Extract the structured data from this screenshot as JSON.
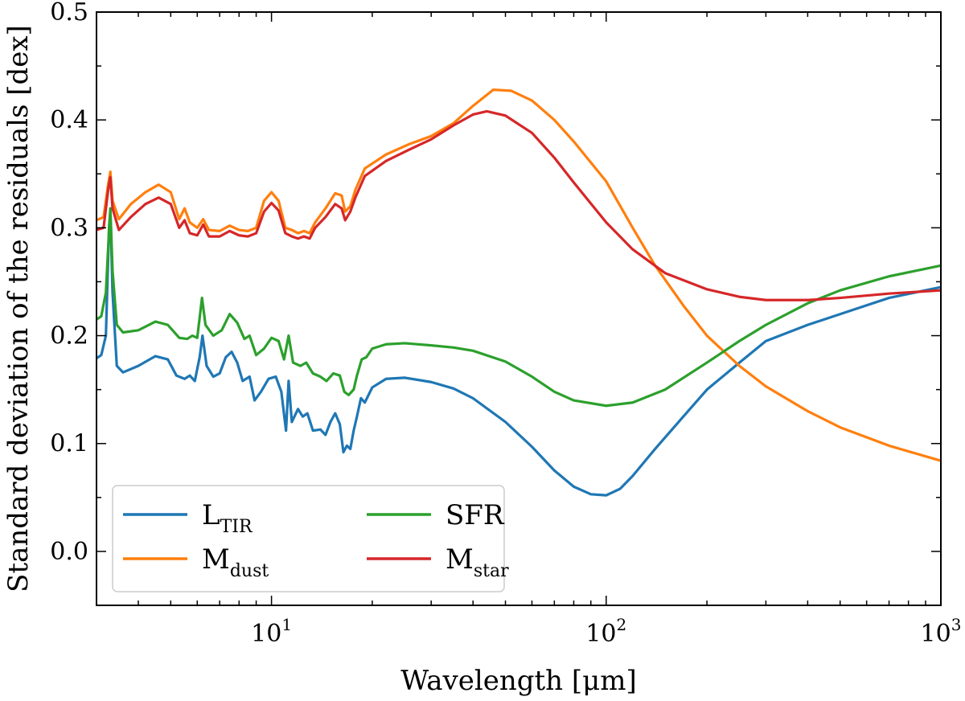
{
  "chart_data": {
    "type": "line",
    "title": "",
    "xlabel": "Wavelength [μm]",
    "ylabel": "Standard deviation of the residuals [dex]",
    "xscale": "log",
    "xlim": [
      3,
      1000
    ],
    "ylim": [
      -0.05,
      0.5
    ],
    "legend_position": "lower-left",
    "xticks": [
      {
        "value": 10,
        "base": "10",
        "exp": "1"
      },
      {
        "value": 100,
        "base": "10",
        "exp": "2"
      },
      {
        "value": 1000,
        "base": "10",
        "exp": "3"
      }
    ],
    "yticks": [
      {
        "value": 0.0,
        "label": "0.0"
      },
      {
        "value": 0.1,
        "label": "0.1"
      },
      {
        "value": 0.2,
        "label": "0.2"
      },
      {
        "value": 0.3,
        "label": "0.3"
      },
      {
        "value": 0.4,
        "label": "0.4"
      },
      {
        "value": 0.5,
        "label": "0.5"
      }
    ],
    "series": [
      {
        "key": "ltir",
        "name": "L_TIR",
        "label_main": "L",
        "label_sub": "TIR",
        "color": "#1f77b4",
        "points": [
          [
            3.0,
            0.179
          ],
          [
            3.1,
            0.182
          ],
          [
            3.2,
            0.2
          ],
          [
            3.27,
            0.3
          ],
          [
            3.3,
            0.315
          ],
          [
            3.35,
            0.24
          ],
          [
            3.45,
            0.172
          ],
          [
            3.6,
            0.166
          ],
          [
            4.0,
            0.172
          ],
          [
            4.5,
            0.181
          ],
          [
            4.9,
            0.178
          ],
          [
            5.2,
            0.163
          ],
          [
            5.5,
            0.16
          ],
          [
            5.7,
            0.163
          ],
          [
            5.9,
            0.158
          ],
          [
            6.1,
            0.18
          ],
          [
            6.22,
            0.2
          ],
          [
            6.4,
            0.172
          ],
          [
            6.7,
            0.162
          ],
          [
            7.0,
            0.165
          ],
          [
            7.3,
            0.18
          ],
          [
            7.6,
            0.185
          ],
          [
            7.9,
            0.175
          ],
          [
            8.2,
            0.158
          ],
          [
            8.6,
            0.162
          ],
          [
            8.9,
            0.14
          ],
          [
            9.3,
            0.148
          ],
          [
            9.8,
            0.16
          ],
          [
            10.3,
            0.162
          ],
          [
            10.7,
            0.148
          ],
          [
            11.05,
            0.112
          ],
          [
            11.25,
            0.158
          ],
          [
            11.5,
            0.12
          ],
          [
            12.0,
            0.132
          ],
          [
            12.4,
            0.125
          ],
          [
            12.8,
            0.128
          ],
          [
            13.3,
            0.112
          ],
          [
            14.0,
            0.113
          ],
          [
            14.5,
            0.108
          ],
          [
            15.0,
            0.12
          ],
          [
            15.5,
            0.128
          ],
          [
            16.0,
            0.118
          ],
          [
            16.4,
            0.092
          ],
          [
            16.8,
            0.098
          ],
          [
            17.2,
            0.095
          ],
          [
            17.6,
            0.112
          ],
          [
            18.0,
            0.125
          ],
          [
            18.5,
            0.142
          ],
          [
            19.0,
            0.138
          ],
          [
            20.0,
            0.152
          ],
          [
            22.0,
            0.16
          ],
          [
            25.0,
            0.161
          ],
          [
            30.0,
            0.157
          ],
          [
            35.0,
            0.151
          ],
          [
            40.0,
            0.142
          ],
          [
            50.0,
            0.12
          ],
          [
            60.0,
            0.097
          ],
          [
            70.0,
            0.075
          ],
          [
            80.0,
            0.06
          ],
          [
            90.0,
            0.053
          ],
          [
            100.0,
            0.052
          ],
          [
            110.0,
            0.058
          ],
          [
            120.0,
            0.07
          ],
          [
            140.0,
            0.095
          ],
          [
            170.0,
            0.125
          ],
          [
            200.0,
            0.15
          ],
          [
            250.0,
            0.175
          ],
          [
            300.0,
            0.195
          ],
          [
            400.0,
            0.21
          ],
          [
            500.0,
            0.22
          ],
          [
            700.0,
            0.235
          ],
          [
            1000.0,
            0.245
          ]
        ]
      },
      {
        "key": "mdust",
        "name": "M_dust",
        "label_main": "M",
        "label_sub": "dust",
        "color": "#ff7f0e",
        "points": [
          [
            3.0,
            0.307
          ],
          [
            3.15,
            0.31
          ],
          [
            3.25,
            0.34
          ],
          [
            3.3,
            0.352
          ],
          [
            3.35,
            0.325
          ],
          [
            3.5,
            0.308
          ],
          [
            3.8,
            0.322
          ],
          [
            4.2,
            0.333
          ],
          [
            4.6,
            0.34
          ],
          [
            5.0,
            0.333
          ],
          [
            5.3,
            0.308
          ],
          [
            5.5,
            0.318
          ],
          [
            5.7,
            0.305
          ],
          [
            6.0,
            0.3
          ],
          [
            6.25,
            0.308
          ],
          [
            6.5,
            0.298
          ],
          [
            7.0,
            0.297
          ],
          [
            7.5,
            0.302
          ],
          [
            8.0,
            0.298
          ],
          [
            8.5,
            0.297
          ],
          [
            9.0,
            0.3
          ],
          [
            9.5,
            0.325
          ],
          [
            10.0,
            0.333
          ],
          [
            10.5,
            0.325
          ],
          [
            11.0,
            0.3
          ],
          [
            11.5,
            0.298
          ],
          [
            12.0,
            0.295
          ],
          [
            12.5,
            0.297
          ],
          [
            13.0,
            0.295
          ],
          [
            13.5,
            0.305
          ],
          [
            14.5,
            0.318
          ],
          [
            15.5,
            0.332
          ],
          [
            16.2,
            0.33
          ],
          [
            16.6,
            0.315
          ],
          [
            17.2,
            0.32
          ],
          [
            17.8,
            0.335
          ],
          [
            19.0,
            0.355
          ],
          [
            22.0,
            0.368
          ],
          [
            26.0,
            0.378
          ],
          [
            30.0,
            0.385
          ],
          [
            35.0,
            0.397
          ],
          [
            40.0,
            0.413
          ],
          [
            46.0,
            0.428
          ],
          [
            52.0,
            0.427
          ],
          [
            60.0,
            0.418
          ],
          [
            70.0,
            0.4
          ],
          [
            80.0,
            0.38
          ],
          [
            100.0,
            0.343
          ],
          [
            120.0,
            0.3
          ],
          [
            140.0,
            0.265
          ],
          [
            170.0,
            0.228
          ],
          [
            200.0,
            0.2
          ],
          [
            250.0,
            0.172
          ],
          [
            300.0,
            0.153
          ],
          [
            400.0,
            0.13
          ],
          [
            500.0,
            0.115
          ],
          [
            700.0,
            0.098
          ],
          [
            1000.0,
            0.084
          ]
        ]
      },
      {
        "key": "sfr",
        "name": "SFR",
        "label_main": "SFR",
        "label_sub": "",
        "color": "#2ca02c",
        "points": [
          [
            3.0,
            0.215
          ],
          [
            3.1,
            0.218
          ],
          [
            3.2,
            0.24
          ],
          [
            3.28,
            0.305
          ],
          [
            3.3,
            0.318
          ],
          [
            3.35,
            0.26
          ],
          [
            3.45,
            0.21
          ],
          [
            3.6,
            0.203
          ],
          [
            4.0,
            0.205
          ],
          [
            4.5,
            0.213
          ],
          [
            4.9,
            0.21
          ],
          [
            5.3,
            0.198
          ],
          [
            5.6,
            0.197
          ],
          [
            5.8,
            0.2
          ],
          [
            6.0,
            0.198
          ],
          [
            6.2,
            0.235
          ],
          [
            6.35,
            0.21
          ],
          [
            6.7,
            0.2
          ],
          [
            7.1,
            0.205
          ],
          [
            7.5,
            0.22
          ],
          [
            7.9,
            0.212
          ],
          [
            8.3,
            0.197
          ],
          [
            8.6,
            0.2
          ],
          [
            9.0,
            0.182
          ],
          [
            9.5,
            0.188
          ],
          [
            10.0,
            0.198
          ],
          [
            10.5,
            0.195
          ],
          [
            10.9,
            0.178
          ],
          [
            11.25,
            0.2
          ],
          [
            11.6,
            0.175
          ],
          [
            12.2,
            0.172
          ],
          [
            12.7,
            0.175
          ],
          [
            13.3,
            0.165
          ],
          [
            14.0,
            0.162
          ],
          [
            14.6,
            0.158
          ],
          [
            15.3,
            0.165
          ],
          [
            16.0,
            0.163
          ],
          [
            16.5,
            0.148
          ],
          [
            17.0,
            0.145
          ],
          [
            17.6,
            0.15
          ],
          [
            18.0,
            0.163
          ],
          [
            18.6,
            0.178
          ],
          [
            19.2,
            0.18
          ],
          [
            20.0,
            0.188
          ],
          [
            22.0,
            0.192
          ],
          [
            25.0,
            0.193
          ],
          [
            30.0,
            0.191
          ],
          [
            35.0,
            0.189
          ],
          [
            40.0,
            0.186
          ],
          [
            50.0,
            0.176
          ],
          [
            60.0,
            0.162
          ],
          [
            70.0,
            0.148
          ],
          [
            80.0,
            0.14
          ],
          [
            100.0,
            0.135
          ],
          [
            120.0,
            0.138
          ],
          [
            150.0,
            0.15
          ],
          [
            200.0,
            0.175
          ],
          [
            250.0,
            0.195
          ],
          [
            300.0,
            0.21
          ],
          [
            400.0,
            0.23
          ],
          [
            500.0,
            0.242
          ],
          [
            700.0,
            0.255
          ],
          [
            1000.0,
            0.265
          ]
        ]
      },
      {
        "key": "mstar",
        "name": "M_star",
        "label_main": "M",
        "label_sub": "star",
        "color": "#d62728",
        "points": [
          [
            3.0,
            0.298
          ],
          [
            3.15,
            0.3
          ],
          [
            3.25,
            0.335
          ],
          [
            3.3,
            0.347
          ],
          [
            3.35,
            0.318
          ],
          [
            3.5,
            0.298
          ],
          [
            3.8,
            0.31
          ],
          [
            4.2,
            0.322
          ],
          [
            4.6,
            0.328
          ],
          [
            5.0,
            0.322
          ],
          [
            5.3,
            0.3
          ],
          [
            5.5,
            0.307
          ],
          [
            5.7,
            0.295
          ],
          [
            6.0,
            0.293
          ],
          [
            6.25,
            0.303
          ],
          [
            6.5,
            0.292
          ],
          [
            7.0,
            0.292
          ],
          [
            7.5,
            0.297
          ],
          [
            8.0,
            0.293
          ],
          [
            8.5,
            0.292
          ],
          [
            9.0,
            0.295
          ],
          [
            9.5,
            0.315
          ],
          [
            10.0,
            0.323
          ],
          [
            10.5,
            0.316
          ],
          [
            11.0,
            0.295
          ],
          [
            11.5,
            0.292
          ],
          [
            12.0,
            0.29
          ],
          [
            12.5,
            0.292
          ],
          [
            13.0,
            0.29
          ],
          [
            13.5,
            0.3
          ],
          [
            14.5,
            0.31
          ],
          [
            15.5,
            0.322
          ],
          [
            16.2,
            0.318
          ],
          [
            16.6,
            0.307
          ],
          [
            17.2,
            0.315
          ],
          [
            17.8,
            0.328
          ],
          [
            19.0,
            0.348
          ],
          [
            22.0,
            0.362
          ],
          [
            26.0,
            0.373
          ],
          [
            30.0,
            0.382
          ],
          [
            35.0,
            0.395
          ],
          [
            40.0,
            0.405
          ],
          [
            44.0,
            0.408
          ],
          [
            50.0,
            0.404
          ],
          [
            60.0,
            0.388
          ],
          [
            70.0,
            0.365
          ],
          [
            80.0,
            0.342
          ],
          [
            100.0,
            0.305
          ],
          [
            120.0,
            0.28
          ],
          [
            150.0,
            0.258
          ],
          [
            200.0,
            0.243
          ],
          [
            250.0,
            0.236
          ],
          [
            300.0,
            0.233
          ],
          [
            400.0,
            0.233
          ],
          [
            500.0,
            0.235
          ],
          [
            700.0,
            0.239
          ],
          [
            1000.0,
            0.242
          ]
        ]
      }
    ]
  }
}
